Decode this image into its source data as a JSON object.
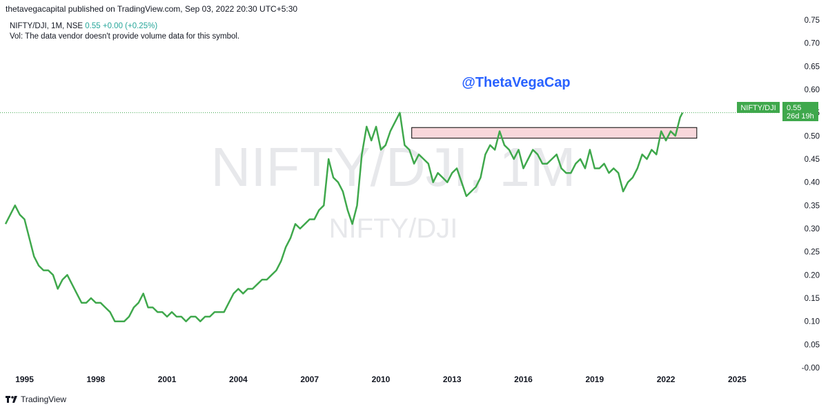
{
  "header": {
    "publisher": "thetavegacapital published on TradingView.com, Sep 03, 2022 20:30 UTC+5:30"
  },
  "legend": {
    "symbol": "NIFTY/DJI, 1M, NSE",
    "value": "0.55",
    "change": "+0.00 (+0.25%)",
    "vol_note": "Vol: The data vendor doesn't provide volume data for this symbol."
  },
  "watermark": {
    "big": "NIFTY/DJI, 1M",
    "small": "NIFTY/DJI"
  },
  "annotation": {
    "handle": "@ThetaVegaCap"
  },
  "price_label": {
    "symbol": "NIFTY/DJI",
    "value": "0.55",
    "countdown": "26d 19h"
  },
  "footer": {
    "brand": "TradingView"
  },
  "colors": {
    "line": "#3fa84c",
    "accent_text": "#2962ff",
    "zone_fill": "#f8d7db",
    "watermark": "#e6e7ea"
  },
  "chart_data": {
    "type": "line",
    "x_ticks": [
      "1995",
      "1998",
      "2001",
      "2004",
      "2007",
      "2010",
      "2013",
      "2016",
      "2019",
      "2022",
      "2025"
    ],
    "y_ticks": [
      "0.75",
      "0.70",
      "0.65",
      "0.60",
      "0.55",
      "0.50",
      "0.45",
      "0.40",
      "0.35",
      "0.30",
      "0.25",
      "0.20",
      "0.15",
      "0.10",
      "0.05",
      "-0.00"
    ],
    "ylim": [
      -0.0,
      0.75
    ],
    "xlim": [
      1994.2,
      2026.5
    ],
    "grid": false,
    "last_value": 0.55,
    "resistance_zone": {
      "x_start": 2011.3,
      "x_end": 2023.3,
      "y_low": 0.495,
      "y_high": 0.518
    },
    "series": [
      {
        "points": [
          [
            1994.2,
            0.31
          ],
          [
            1994.4,
            0.33
          ],
          [
            1994.6,
            0.35
          ],
          [
            1994.8,
            0.33
          ],
          [
            1995.0,
            0.32
          ],
          [
            1995.2,
            0.28
          ],
          [
            1995.4,
            0.24
          ],
          [
            1995.6,
            0.22
          ],
          [
            1995.8,
            0.21
          ],
          [
            1996.0,
            0.21
          ],
          [
            1996.2,
            0.2
          ],
          [
            1996.4,
            0.17
          ],
          [
            1996.6,
            0.19
          ],
          [
            1996.8,
            0.2
          ],
          [
            1997.0,
            0.18
          ],
          [
            1997.2,
            0.16
          ],
          [
            1997.4,
            0.14
          ],
          [
            1997.6,
            0.14
          ],
          [
            1997.8,
            0.15
          ],
          [
            1998.0,
            0.14
          ],
          [
            1998.2,
            0.14
          ],
          [
            1998.4,
            0.13
          ],
          [
            1998.6,
            0.12
          ],
          [
            1998.8,
            0.1
          ],
          [
            1999.0,
            0.1
          ],
          [
            1999.2,
            0.1
          ],
          [
            1999.4,
            0.11
          ],
          [
            1999.6,
            0.13
          ],
          [
            1999.8,
            0.14
          ],
          [
            2000.0,
            0.16
          ],
          [
            2000.2,
            0.13
          ],
          [
            2000.4,
            0.13
          ],
          [
            2000.6,
            0.12
          ],
          [
            2000.8,
            0.12
          ],
          [
            2001.0,
            0.11
          ],
          [
            2001.2,
            0.12
          ],
          [
            2001.4,
            0.11
          ],
          [
            2001.6,
            0.11
          ],
          [
            2001.8,
            0.1
          ],
          [
            2002.0,
            0.11
          ],
          [
            2002.2,
            0.11
          ],
          [
            2002.4,
            0.1
          ],
          [
            2002.6,
            0.11
          ],
          [
            2002.8,
            0.11
          ],
          [
            2003.0,
            0.12
          ],
          [
            2003.2,
            0.12
          ],
          [
            2003.4,
            0.12
          ],
          [
            2003.6,
            0.14
          ],
          [
            2003.8,
            0.16
          ],
          [
            2004.0,
            0.17
          ],
          [
            2004.2,
            0.16
          ],
          [
            2004.4,
            0.17
          ],
          [
            2004.6,
            0.17
          ],
          [
            2004.8,
            0.18
          ],
          [
            2005.0,
            0.19
          ],
          [
            2005.2,
            0.19
          ],
          [
            2005.4,
            0.2
          ],
          [
            2005.6,
            0.21
          ],
          [
            2005.8,
            0.23
          ],
          [
            2006.0,
            0.26
          ],
          [
            2006.2,
            0.28
          ],
          [
            2006.4,
            0.31
          ],
          [
            2006.6,
            0.3
          ],
          [
            2006.8,
            0.31
          ],
          [
            2007.0,
            0.32
          ],
          [
            2007.2,
            0.32
          ],
          [
            2007.4,
            0.34
          ],
          [
            2007.6,
            0.35
          ],
          [
            2007.8,
            0.45
          ],
          [
            2008.0,
            0.41
          ],
          [
            2008.2,
            0.4
          ],
          [
            2008.4,
            0.38
          ],
          [
            2008.6,
            0.34
          ],
          [
            2008.8,
            0.31
          ],
          [
            2009.0,
            0.35
          ],
          [
            2009.2,
            0.46
          ],
          [
            2009.4,
            0.52
          ],
          [
            2009.6,
            0.49
          ],
          [
            2009.8,
            0.52
          ],
          [
            2010.0,
            0.47
          ],
          [
            2010.2,
            0.48
          ],
          [
            2010.4,
            0.51
          ],
          [
            2010.6,
            0.53
          ],
          [
            2010.8,
            0.55
          ],
          [
            2011.0,
            0.48
          ],
          [
            2011.2,
            0.47
          ],
          [
            2011.4,
            0.44
          ],
          [
            2011.6,
            0.46
          ],
          [
            2011.8,
            0.45
          ],
          [
            2012.0,
            0.44
          ],
          [
            2012.2,
            0.4
          ],
          [
            2012.4,
            0.42
          ],
          [
            2012.6,
            0.41
          ],
          [
            2012.8,
            0.4
          ],
          [
            2013.0,
            0.42
          ],
          [
            2013.2,
            0.43
          ],
          [
            2013.4,
            0.4
          ],
          [
            2013.6,
            0.37
          ],
          [
            2013.8,
            0.38
          ],
          [
            2014.0,
            0.39
          ],
          [
            2014.2,
            0.41
          ],
          [
            2014.4,
            0.46
          ],
          [
            2014.6,
            0.48
          ],
          [
            2014.8,
            0.47
          ],
          [
            2015.0,
            0.51
          ],
          [
            2015.2,
            0.48
          ],
          [
            2015.4,
            0.47
          ],
          [
            2015.6,
            0.45
          ],
          [
            2015.8,
            0.47
          ],
          [
            2016.0,
            0.43
          ],
          [
            2016.2,
            0.45
          ],
          [
            2016.4,
            0.47
          ],
          [
            2016.6,
            0.46
          ],
          [
            2016.8,
            0.44
          ],
          [
            2017.0,
            0.44
          ],
          [
            2017.2,
            0.45
          ],
          [
            2017.4,
            0.46
          ],
          [
            2017.6,
            0.43
          ],
          [
            2017.8,
            0.42
          ],
          [
            2018.0,
            0.42
          ],
          [
            2018.2,
            0.44
          ],
          [
            2018.4,
            0.45
          ],
          [
            2018.6,
            0.43
          ],
          [
            2018.8,
            0.47
          ],
          [
            2019.0,
            0.43
          ],
          [
            2019.2,
            0.43
          ],
          [
            2019.4,
            0.44
          ],
          [
            2019.6,
            0.42
          ],
          [
            2019.8,
            0.43
          ],
          [
            2020.0,
            0.42
          ],
          [
            2020.2,
            0.38
          ],
          [
            2020.4,
            0.4
          ],
          [
            2020.6,
            0.41
          ],
          [
            2020.8,
            0.43
          ],
          [
            2021.0,
            0.46
          ],
          [
            2021.2,
            0.45
          ],
          [
            2021.4,
            0.47
          ],
          [
            2021.6,
            0.46
          ],
          [
            2021.8,
            0.51
          ],
          [
            2022.0,
            0.49
          ],
          [
            2022.2,
            0.51
          ],
          [
            2022.4,
            0.5
          ],
          [
            2022.6,
            0.54
          ],
          [
            2022.7,
            0.55
          ]
        ]
      }
    ]
  }
}
